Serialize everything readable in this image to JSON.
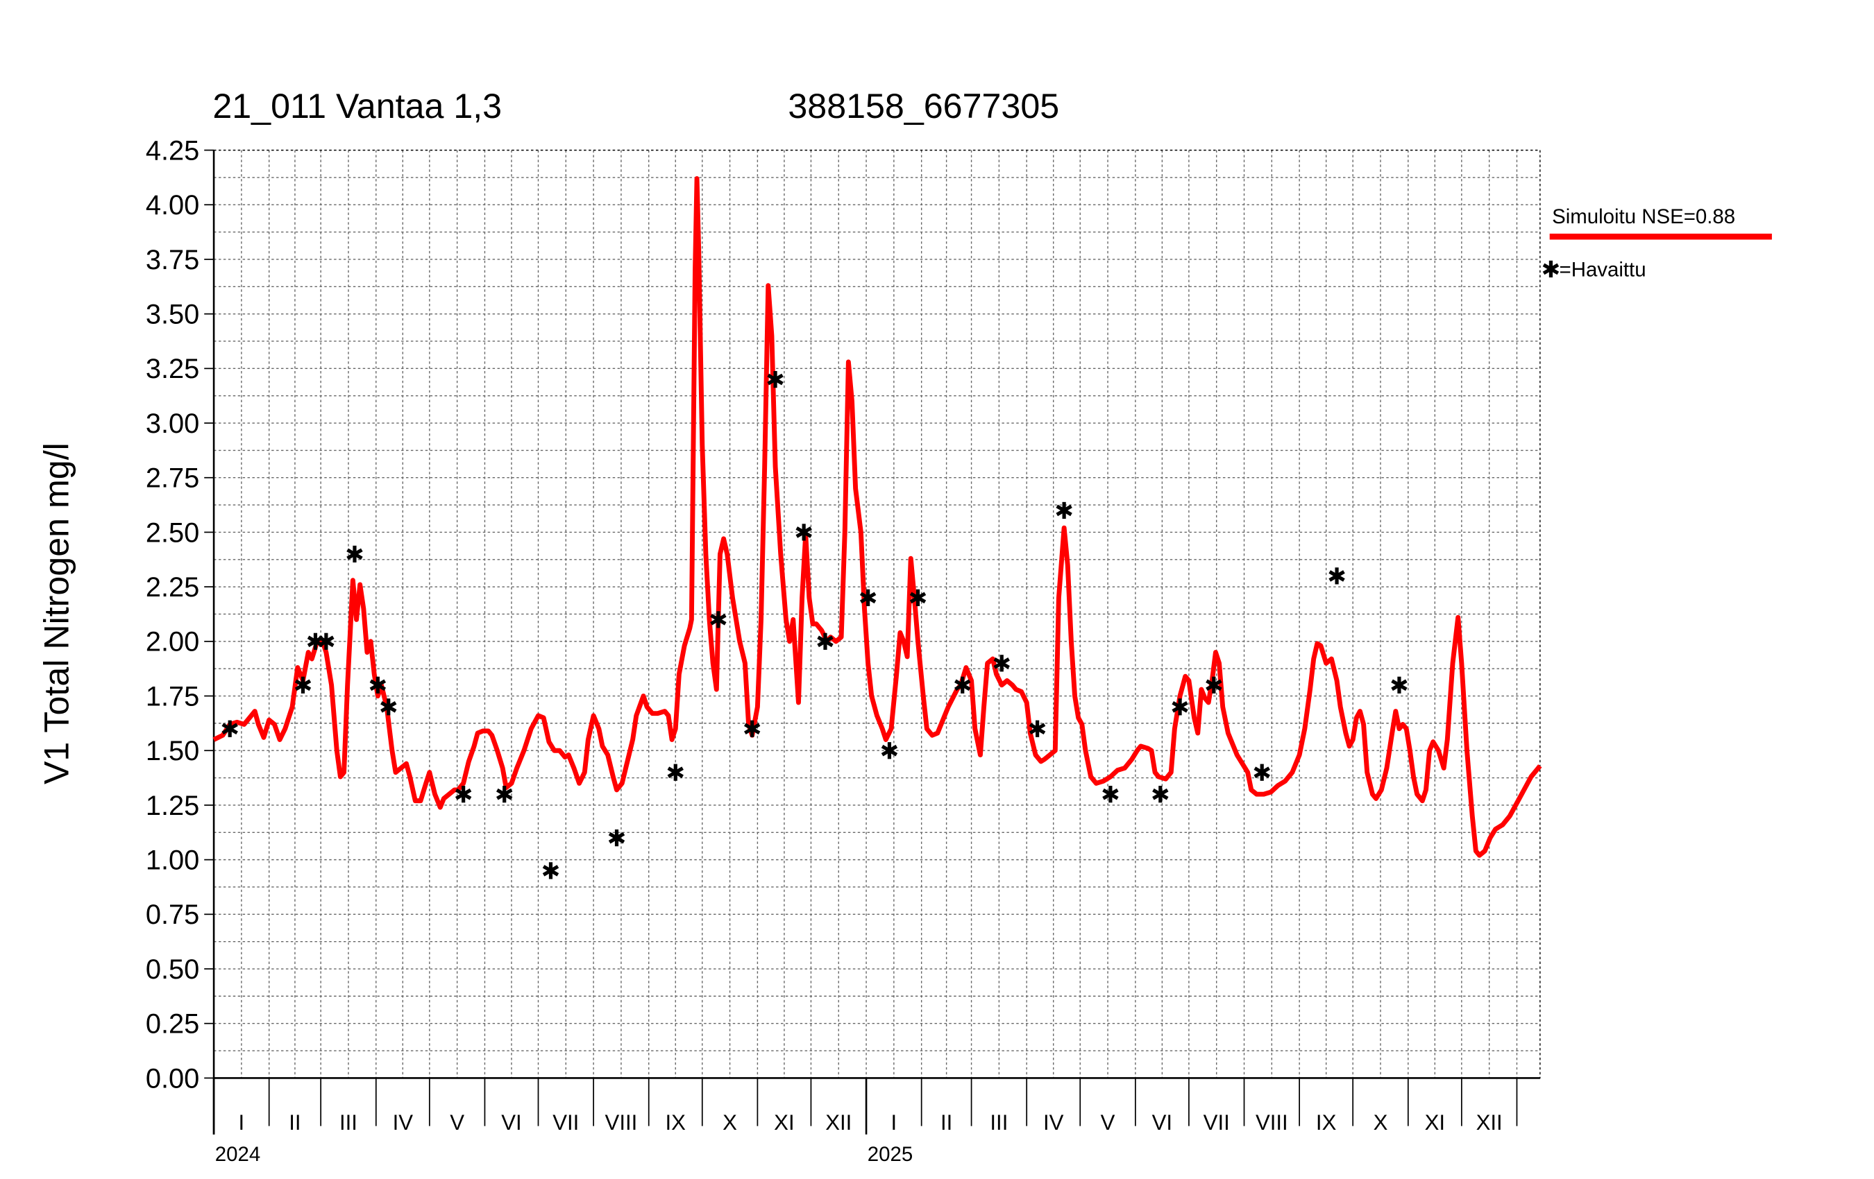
{
  "chart_data": {
    "type": "line",
    "title": "21_011 Vantaa 1,3",
    "subtitle": "388158_6677305",
    "y_label": "V1 Total Nitrogen mg/l",
    "xlim": [
      0,
      744
    ],
    "ylim": [
      0,
      4.25
    ],
    "yticks": [
      {
        "value": 0,
        "label": "0.00"
      },
      {
        "value": 0.25,
        "label": "0.25"
      },
      {
        "value": 0.5,
        "label": "0.50"
      },
      {
        "value": 0.75,
        "label": "0.75"
      },
      {
        "value": 1,
        "label": "1.00"
      },
      {
        "value": 1.25,
        "label": "1.25"
      },
      {
        "value": 1.5,
        "label": "1.50"
      },
      {
        "value": 1.75,
        "label": "1.75"
      },
      {
        "value": 2,
        "label": "2.00"
      },
      {
        "value": 2.25,
        "label": "2.25"
      },
      {
        "value": 2.5,
        "label": "2.50"
      },
      {
        "value": 2.75,
        "label": "2.75"
      },
      {
        "value": 3,
        "label": "3.00"
      },
      {
        "value": 3.25,
        "label": "3.25"
      },
      {
        "value": 3.5,
        "label": "3.50"
      },
      {
        "value": 3.75,
        "label": "3.75"
      },
      {
        "value": 4,
        "label": "4.00"
      },
      {
        "value": 4.25,
        "label": "4.25"
      }
    ],
    "xticks": [
      {
        "value": 0,
        "label": "I"
      },
      {
        "value": 31,
        "label": "II"
      },
      {
        "value": 60,
        "label": "III"
      },
      {
        "value": 91,
        "label": "IV"
      },
      {
        "value": 121,
        "label": "V"
      },
      {
        "value": 152,
        "label": "VI"
      },
      {
        "value": 182,
        "label": "VII"
      },
      {
        "value": 213,
        "label": "VIII"
      },
      {
        "value": 244,
        "label": "IX"
      },
      {
        "value": 274,
        "label": "X"
      },
      {
        "value": 305,
        "label": "XI"
      },
      {
        "value": 335,
        "label": "XII"
      },
      {
        "value": 366,
        "label": "I"
      },
      {
        "value": 397,
        "label": "II"
      },
      {
        "value": 425,
        "label": "III"
      },
      {
        "value": 456,
        "label": "IV"
      },
      {
        "value": 486,
        "label": "V"
      },
      {
        "value": 517,
        "label": "VI"
      },
      {
        "value": 547,
        "label": "VII"
      },
      {
        "value": 578,
        "label": "VIII"
      },
      {
        "value": 609,
        "label": "IX"
      },
      {
        "value": 639,
        "label": "X"
      },
      {
        "value": 670,
        "label": "XI"
      },
      {
        "value": 700,
        "label": "XII"
      },
      {
        "value": 731,
        "label": null
      }
    ],
    "year_ticks": [
      {
        "value": 0,
        "label": "2024"
      },
      {
        "value": 366,
        "label": "2025"
      }
    ],
    "grid": true,
    "legend": "top-right",
    "series": [
      {
        "name": "Simuloitu NSE=0.88",
        "color": "#ff0000",
        "mark": "line",
        "x": [
          0,
          5,
          9,
          13,
          17,
          20,
          23,
          25,
          28,
          31,
          34,
          37,
          40,
          44,
          47,
          50,
          53,
          55,
          58,
          61,
          63,
          66,
          69,
          71,
          73,
          75,
          78,
          80,
          82,
          84,
          86,
          88,
          90,
          92,
          94,
          97,
          100,
          102,
          105,
          108,
          110,
          113,
          116,
          119,
          121,
          124,
          127,
          129,
          132,
          135,
          137,
          140,
          143,
          146,
          148,
          151,
          154,
          156,
          159,
          162,
          164,
          167,
          170,
          174,
          178,
          182,
          185,
          188,
          191,
          194,
          197,
          199,
          202,
          205,
          208,
          210,
          213,
          216,
          218,
          221,
          224,
          226,
          229,
          232,
          235,
          237,
          241,
          243,
          246,
          249,
          253,
          255,
          257,
          259,
          261,
          264,
          267,
          268,
          270,
          271,
          272,
          274,
          276,
          278,
          280,
          282,
          283,
          284,
          286,
          288,
          291,
          293,
          295,
          298,
          300,
          302,
          305,
          307,
          309,
          311,
          313,
          315,
          318,
          321,
          323,
          325,
          328,
          330,
          332,
          334,
          336,
          338,
          341,
          344,
          346,
          349,
          352,
          354,
          356,
          358,
          360,
          363,
          365,
          367,
          369,
          372,
          375,
          377,
          380,
          383,
          385,
          387,
          389,
          391,
          393,
          395,
          398,
          400,
          403,
          406,
          408,
          412,
          417,
          419,
          422,
          425,
          427,
          430,
          432,
          434,
          437,
          439,
          442,
          445,
          448,
          450,
          453,
          456,
          458,
          461,
          464,
          466,
          469,
          472,
          474,
          477,
          479,
          481,
          483,
          485,
          487,
          489,
          492,
          495,
          499,
          503,
          507,
          511,
          515,
          518,
          520,
          524,
          526,
          528,
          530,
          534,
          537,
          539,
          542,
          545,
          547,
          550,
          552,
          554,
          556,
          558,
          560,
          562,
          564,
          566,
          569,
          572,
          574,
          577,
          580,
          582,
          585,
          589,
          593,
          597,
          601,
          605,
          609,
          612,
          615,
          617,
          619,
          621,
          624,
          627,
          630,
          632,
          635,
          637,
          639,
          641,
          643,
          645,
          647,
          650,
          652,
          655,
          658,
          661,
          663,
          665,
          667,
          669,
          671,
          673,
          675,
          678,
          680,
          682,
          684,
          687,
          690,
          692,
          695,
          698,
          700,
          703,
          706,
          708,
          710,
          713,
          716,
          719,
          723,
          727,
          731,
          735,
          739,
          744
        ],
        "values": [
          1.55,
          1.57,
          1.62,
          1.63,
          1.62,
          1.65,
          1.68,
          1.62,
          1.56,
          1.64,
          1.62,
          1.55,
          1.6,
          1.7,
          1.88,
          1.82,
          1.95,
          1.92,
          2.0,
          2.0,
          1.95,
          1.8,
          1.5,
          1.38,
          1.4,
          1.8,
          2.28,
          2.1,
          2.26,
          2.15,
          1.95,
          2.0,
          1.85,
          1.75,
          1.8,
          1.7,
          1.5,
          1.4,
          1.42,
          1.44,
          1.38,
          1.27,
          1.27,
          1.35,
          1.4,
          1.3,
          1.24,
          1.28,
          1.3,
          1.32,
          1.32,
          1.35,
          1.45,
          1.52,
          1.58,
          1.59,
          1.59,
          1.57,
          1.5,
          1.42,
          1.33,
          1.35,
          1.42,
          1.5,
          1.6,
          1.66,
          1.65,
          1.54,
          1.5,
          1.5,
          1.47,
          1.48,
          1.42,
          1.35,
          1.4,
          1.55,
          1.66,
          1.6,
          1.52,
          1.48,
          1.38,
          1.32,
          1.35,
          1.45,
          1.55,
          1.66,
          1.75,
          1.7,
          1.67,
          1.67,
          1.68,
          1.66,
          1.55,
          1.6,
          1.85,
          1.98,
          2.06,
          2.1,
          3.7,
          4.12,
          3.8,
          2.9,
          2.4,
          2.1,
          1.9,
          1.78,
          2.1,
          2.4,
          2.47,
          2.4,
          2.2,
          2.1,
          2.0,
          1.9,
          1.62,
          1.57,
          1.7,
          2.1,
          2.8,
          3.63,
          3.4,
          2.8,
          2.4,
          2.1,
          2.0,
          2.1,
          1.72,
          2.2,
          2.49,
          2.2,
          2.08,
          2.08,
          2.05,
          2.0,
          2.02,
          2.0,
          2.02,
          2.5,
          3.28,
          3.1,
          2.7,
          2.5,
          2.15,
          1.9,
          1.75,
          1.66,
          1.6,
          1.55,
          1.6,
          1.85,
          2.04,
          2.0,
          1.93,
          2.38,
          2.2,
          2.0,
          1.75,
          1.6,
          1.57,
          1.58,
          1.62,
          1.7,
          1.78,
          1.8,
          1.88,
          1.82,
          1.6,
          1.48,
          1.7,
          1.9,
          1.92,
          1.85,
          1.8,
          1.82,
          1.8,
          1.78,
          1.77,
          1.72,
          1.58,
          1.48,
          1.45,
          1.46,
          1.48,
          1.5,
          2.2,
          2.52,
          2.35,
          2.0,
          1.75,
          1.65,
          1.62,
          1.5,
          1.38,
          1.35,
          1.36,
          1.38,
          1.41,
          1.42,
          1.46,
          1.5,
          1.52,
          1.51,
          1.5,
          1.4,
          1.38,
          1.37,
          1.4,
          1.6,
          1.75,
          1.84,
          1.82,
          1.65,
          1.58,
          1.78,
          1.74,
          1.72,
          1.82,
          1.95,
          1.9,
          1.7,
          1.58,
          1.52,
          1.48,
          1.44,
          1.4,
          1.32,
          1.3,
          1.3,
          1.31,
          1.34,
          1.36,
          1.4,
          1.48,
          1.6,
          1.78,
          1.92,
          1.99,
          1.98,
          1.9,
          1.92,
          1.82,
          1.7,
          1.58,
          1.52,
          1.55,
          1.65,
          1.68,
          1.62,
          1.4,
          1.3,
          1.28,
          1.32,
          1.42,
          1.58,
          1.68,
          1.6,
          1.62,
          1.6,
          1.5,
          1.38,
          1.3,
          1.27,
          1.32,
          1.5,
          1.54,
          1.5,
          1.42,
          1.55,
          1.9,
          2.11,
          1.9,
          1.5,
          1.2,
          1.04,
          1.02,
          1.04,
          1.1,
          1.14,
          1.16,
          1.2,
          1.26,
          1.32,
          1.38,
          1.43
        ]
      },
      {
        "name": "=Havaittu",
        "color": "#000000",
        "mark": "asterisk",
        "x": [
          9,
          50,
          57,
          63,
          79,
          92,
          98,
          140,
          163,
          189,
          226,
          259,
          283,
          302,
          315,
          331,
          343,
          367,
          379,
          395,
          420,
          442,
          462,
          477,
          503,
          531,
          542,
          561,
          588,
          630,
          665
        ],
        "values": [
          1.6,
          1.8,
          2.0,
          2.0,
          2.4,
          1.8,
          1.7,
          1.3,
          1.3,
          0.95,
          1.1,
          1.4,
          2.1,
          1.6,
          3.2,
          2.5,
          2.0,
          2.2,
          1.5,
          2.2,
          1.8,
          1.9,
          1.6,
          2.6,
          1.3,
          1.3,
          1.7,
          1.8,
          1.4,
          2.3,
          1.8
        ]
      }
    ]
  }
}
